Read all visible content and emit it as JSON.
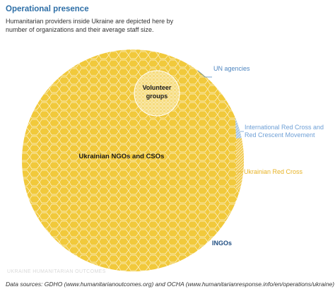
{
  "header": {
    "title": "Operational presence",
    "subtitle": "Humanitarian providers inside Ukraine are depicted here by number of organizations and their average staff size."
  },
  "footer": {
    "source": "Data sources: GDHO (www.humanitarianoutcomes.org) and OCHA (www.humanitarianresponse.info/en/operations/ukraine)",
    "watermark": "UKRAINE HUMANITARIAN OUTCOMES"
  },
  "colors": {
    "ngo": "#f1c93b",
    "ngo_cell_border": "#d4a72a",
    "volunteer": "#f6dc7e",
    "un": "#5f93c9",
    "icrc": "#a9c8e6",
    "red_cross": "#f2cc54",
    "ingo": "#1f4e82",
    "ngo_label": "#1a1a1a",
    "un_label": "#4f86c0",
    "icrc_label": "#6fa0d6",
    "red_cross_label": "#e8b325",
    "ingo_label": "#1f4e82"
  },
  "chart_data": {
    "type": "voronoi treemap",
    "segments": [
      {
        "name": "Ukrainian NGOs and CSOs",
        "color": "#f1c93b"
      },
      {
        "name": "Volunteer groups",
        "color": "#f6dc7e"
      },
      {
        "name": "UN agencies",
        "color": "#5f93c9"
      },
      {
        "name": "International Red Cross and Red Crescent Movement",
        "color": "#a9c8e6"
      },
      {
        "name": "Ukrainian Red Cross",
        "color": "#f2cc54"
      },
      {
        "name": "INGOs",
        "color": "#1f4e82"
      }
    ],
    "labels": {
      "ngo": "Ukrainian NGOs and CSOs",
      "volunteer_line1": "Volunteer",
      "volunteer_line2": "groups",
      "un": "UN agencies",
      "icrc_line1": "International Red Cross and",
      "icrc_line2": "Red Crescent Movement",
      "red_cross": "Ukrainian Red Cross",
      "ingo": "INGOs"
    }
  }
}
